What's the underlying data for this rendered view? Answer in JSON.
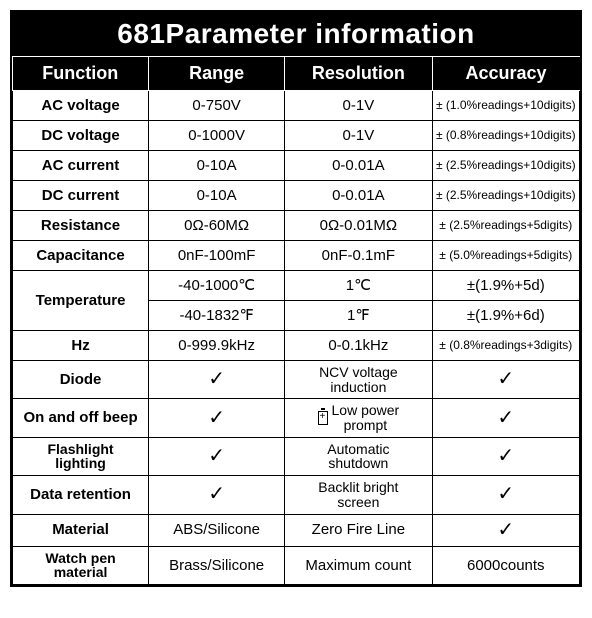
{
  "title": "681Parameter information",
  "headers": [
    "Function",
    "Range",
    "Resolution",
    "Accuracy"
  ],
  "col_widths": [
    "24%",
    "24%",
    "26%",
    "26%"
  ],
  "colors": {
    "header_bg": "#000000",
    "header_fg": "#ffffff",
    "border": "#000000",
    "body_bg": "#ffffff"
  },
  "fonts": {
    "title_size": 28,
    "header_size": 18,
    "cell_size": 15,
    "small_size": 12
  },
  "check": "✓",
  "rows": [
    {
      "fn": "AC voltage",
      "range": "0-750V",
      "res": "0-1V",
      "acc": "± (1.0%readings+10digits)",
      "acc_small": true
    },
    {
      "fn": "DC voltage",
      "range": "0-1000V",
      "res": "0-1V",
      "acc": "± (0.8%readings+10digits)",
      "acc_small": true
    },
    {
      "fn": "AC current",
      "range": "0-10A",
      "res": "0-0.01A",
      "acc": "± (2.5%readings+10digits)",
      "acc_small": true
    },
    {
      "fn": "DC current",
      "range": "0-10A",
      "res": "0-0.01A",
      "acc": "± (2.5%readings+10digits)",
      "acc_small": true
    },
    {
      "fn": "Resistance",
      "range": "0Ω-60MΩ",
      "res": "0Ω-0.01MΩ",
      "acc": "± (2.5%readings+5digits)",
      "acc_small": true
    },
    {
      "fn": "Capacitance",
      "range": "0nF-100mF",
      "res": "0nF-0.1mF",
      "acc": "± (5.0%readings+5digits)",
      "acc_small": true
    },
    {
      "fn": "Temperature",
      "fn_rowspan": 2,
      "range": "-40-1000℃",
      "res": "1℃",
      "acc": "±(1.9%+5d)"
    },
    {
      "range": "-40-1832℉",
      "res": "1℉",
      "acc": "±(1.9%+6d)"
    },
    {
      "fn": "Hz",
      "range": "0-999.9kHz",
      "res": "0-0.1kHz",
      "acc": "± (0.8%readings+3digits)",
      "acc_small": true
    },
    {
      "fn": "Diode",
      "range_check": true,
      "res": "NCV voltage induction",
      "res_narrow": true,
      "acc_check": true
    },
    {
      "fn": "On and off beep",
      "range_check": true,
      "res": "Low power prompt",
      "res_narrow": true,
      "res_battery": true,
      "acc_check": true
    },
    {
      "fn": "Flashlight lighting",
      "fn_narrow": true,
      "range_check": true,
      "res": "Automatic shutdown",
      "res_narrow": true,
      "acc_check": true
    },
    {
      "fn": "Data retention",
      "range_check": true,
      "res": "Backlit bright screen",
      "res_narrow": true,
      "acc_check": true
    },
    {
      "fn": "Material",
      "range": "ABS/Silicone",
      "res": "Zero Fire Line",
      "acc_check": true
    },
    {
      "fn": "Watch pen material",
      "fn_narrow": true,
      "range": "Brass/Silicone",
      "res": "Maximum count",
      "acc": "6000counts"
    }
  ]
}
